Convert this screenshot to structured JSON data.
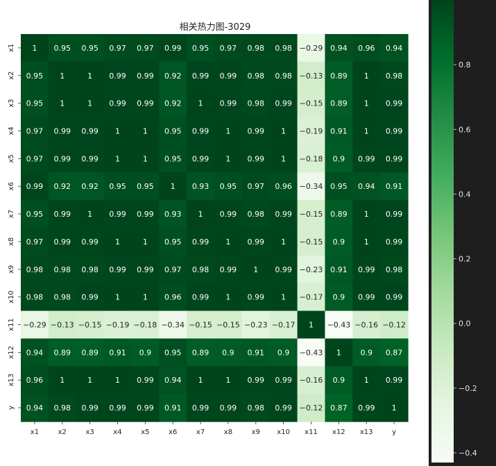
{
  "chart_data": {
    "type": "heatmap",
    "title": "相关热力图-3029",
    "xlabel": "",
    "ylabel": "",
    "x_labels": [
      "x1",
      "x2",
      "x3",
      "x4",
      "x5",
      "x6",
      "x7",
      "x8",
      "x9",
      "x10",
      "x11",
      "x12",
      "x13",
      "y"
    ],
    "y_labels": [
      "x1",
      "x2",
      "x3",
      "x4",
      "x5",
      "x6",
      "x7",
      "x8",
      "x9",
      "x10",
      "x11",
      "x12",
      "x13",
      "y"
    ],
    "values": [
      [
        1,
        0.95,
        0.95,
        0.97,
        0.97,
        0.99,
        0.95,
        0.97,
        0.98,
        0.98,
        -0.29,
        0.94,
        0.96,
        0.94
      ],
      [
        0.95,
        1,
        1,
        0.99,
        0.99,
        0.92,
        0.99,
        0.99,
        0.98,
        0.98,
        -0.13,
        0.89,
        1,
        0.98
      ],
      [
        0.95,
        1,
        1,
        0.99,
        0.99,
        0.92,
        1,
        0.99,
        0.98,
        0.99,
        -0.15,
        0.89,
        1,
        0.99
      ],
      [
        0.97,
        0.99,
        0.99,
        1,
        1,
        0.95,
        0.99,
        1,
        0.99,
        1,
        -0.19,
        0.91,
        1,
        0.99
      ],
      [
        0.97,
        0.99,
        0.99,
        1,
        1,
        0.95,
        0.99,
        1,
        0.99,
        1,
        -0.18,
        0.9,
        0.99,
        0.99
      ],
      [
        0.99,
        0.92,
        0.92,
        0.95,
        0.95,
        1,
        0.93,
        0.95,
        0.97,
        0.96,
        -0.34,
        0.95,
        0.94,
        0.91
      ],
      [
        0.95,
        0.99,
        1,
        0.99,
        0.99,
        0.93,
        1,
        0.99,
        0.98,
        0.99,
        -0.15,
        0.89,
        1,
        0.99
      ],
      [
        0.97,
        0.99,
        0.99,
        1,
        1,
        0.95,
        0.99,
        1,
        0.99,
        1,
        -0.15,
        0.9,
        1,
        0.99
      ],
      [
        0.98,
        0.98,
        0.98,
        0.99,
        0.99,
        0.97,
        0.98,
        0.99,
        1,
        0.99,
        -0.23,
        0.91,
        0.99,
        0.98
      ],
      [
        0.98,
        0.98,
        0.99,
        1,
        1,
        0.96,
        0.99,
        1,
        0.99,
        1,
        -0.17,
        0.9,
        0.99,
        0.99
      ],
      [
        -0.29,
        -0.13,
        -0.15,
        -0.19,
        -0.18,
        -0.34,
        -0.15,
        -0.15,
        -0.23,
        -0.17,
        1,
        -0.43,
        -0.16,
        -0.12
      ],
      [
        0.94,
        0.89,
        0.89,
        0.91,
        0.9,
        0.95,
        0.89,
        0.9,
        0.91,
        0.9,
        -0.43,
        1,
        0.9,
        0.87
      ],
      [
        0.96,
        1,
        1,
        1,
        0.99,
        0.94,
        1,
        1,
        0.99,
        0.99,
        -0.16,
        0.9,
        1,
        0.99
      ],
      [
        0.94,
        0.98,
        0.99,
        0.99,
        0.99,
        0.91,
        0.99,
        0.99,
        0.98,
        0.99,
        -0.12,
        0.87,
        0.99,
        1
      ]
    ],
    "colorbar": {
      "min": -0.43,
      "max": 1,
      "ticks": [
        0.8,
        0.6,
        0.4,
        0.2,
        0.0,
        -0.2,
        -0.4
      ],
      "tick_labels": [
        "0.8",
        "0.6",
        "0.4",
        "0.2",
        "0.0",
        "−0.2",
        "−0.4"
      ]
    },
    "colormap": "Greens",
    "colors": {
      "background": "#1e1e1e",
      "figure": "#ffffff",
      "low": "#f7fcf5",
      "high": "#00441b"
    },
    "grid": false,
    "legend": "colorbar-right"
  }
}
